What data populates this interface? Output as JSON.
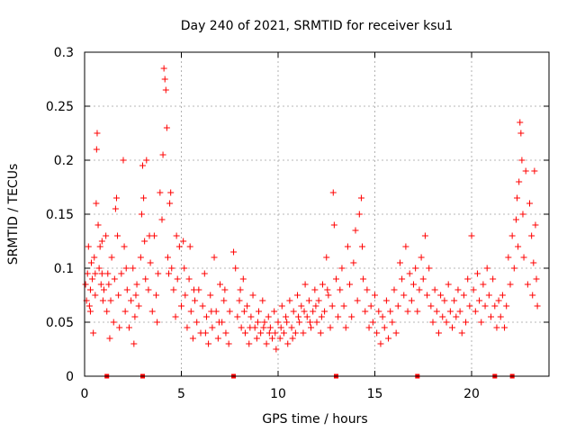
{
  "chart_data": {
    "type": "scatter",
    "title": "Day 240 of 2021, SRMTID for receiver ksu1",
    "xlabel": "GPS time / hours",
    "ylabel": "SRMTID / TECUs",
    "xlim": [
      0,
      24
    ],
    "ylim": [
      0,
      0.3
    ],
    "xticks": [
      0,
      5,
      10,
      15,
      20
    ],
    "xtick_labels": [
      "0",
      "5",
      "10",
      "15",
      "20"
    ],
    "yticks": [
      0,
      0.05,
      0.1,
      0.15,
      0.2,
      0.25,
      0.3
    ],
    "ytick_labels": [
      "0",
      "0.05",
      "0.1",
      "0.15",
      "0.2",
      "0.25",
      "0.3"
    ],
    "grid": true,
    "marker": "+",
    "series": [
      {
        "name": "SRMTID",
        "color": "#ff0000",
        "points": [
          [
            0.05,
            0.085
          ],
          [
            0.1,
            0.07
          ],
          [
            0.15,
            0.095
          ],
          [
            0.2,
            0.12
          ],
          [
            0.25,
            0.065
          ],
          [
            0.3,
            0.08
          ],
          [
            0.35,
            0.105
          ],
          [
            0.4,
            0.09
          ],
          [
            0.45,
            0.04
          ],
          [
            0.5,
            0.11
          ],
          [
            0.55,
            0.075
          ],
          [
            0.6,
            0.16
          ],
          [
            0.62,
            0.21
          ],
          [
            0.65,
            0.225
          ],
          [
            0.7,
            0.14
          ],
          [
            0.75,
            0.1
          ],
          [
            0.8,
            0.12
          ],
          [
            0.85,
            0.085
          ],
          [
            0.9,
            0.095
          ],
          [
            0.95,
            0.07
          ],
          [
            1.0,
            0.08
          ],
          [
            1.1,
            0.13
          ],
          [
            1.15,
            0.06
          ],
          [
            1.2,
            0.095
          ],
          [
            1.3,
            0.035
          ],
          [
            1.35,
            0.07
          ],
          [
            1.4,
            0.11
          ],
          [
            1.5,
            0.05
          ],
          [
            1.55,
            0.09
          ],
          [
            1.6,
            0.155
          ],
          [
            1.65,
            0.165
          ],
          [
            1.7,
            0.13
          ],
          [
            1.75,
            0.075
          ],
          [
            1.8,
            0.045
          ],
          [
            1.9,
            0.095
          ],
          [
            2.0,
            0.2
          ],
          [
            2.05,
            0.12
          ],
          [
            2.1,
            0.06
          ],
          [
            2.2,
            0.08
          ],
          [
            2.3,
            0.045
          ],
          [
            2.4,
            0.07
          ],
          [
            2.5,
            0.1
          ],
          [
            2.55,
            0.03
          ],
          [
            2.6,
            0.055
          ],
          [
            2.7,
            0.085
          ],
          [
            2.8,
            0.065
          ],
          [
            2.9,
            0.11
          ],
          [
            2.95,
            0.15
          ],
          [
            3.0,
            0.195
          ],
          [
            3.05,
            0.165
          ],
          [
            3.1,
            0.125
          ],
          [
            3.15,
            0.09
          ],
          [
            3.2,
            0.2
          ],
          [
            3.3,
            0.08
          ],
          [
            3.4,
            0.105
          ],
          [
            3.5,
            0.06
          ],
          [
            3.6,
            0.13
          ],
          [
            3.7,
            0.075
          ],
          [
            3.8,
            0.095
          ],
          [
            3.9,
            0.17
          ],
          [
            4.0,
            0.145
          ],
          [
            4.05,
            0.205
          ],
          [
            4.1,
            0.285
          ],
          [
            4.15,
            0.275
          ],
          [
            4.2,
            0.265
          ],
          [
            4.25,
            0.23
          ],
          [
            4.3,
            0.11
          ],
          [
            4.4,
            0.16
          ],
          [
            4.45,
            0.17
          ],
          [
            4.5,
            0.1
          ],
          [
            4.6,
            0.08
          ],
          [
            4.7,
            0.055
          ],
          [
            4.8,
            0.09
          ],
          [
            4.9,
            0.12
          ],
          [
            5.0,
            0.065
          ],
          [
            5.1,
            0.125
          ],
          [
            5.2,
            0.075
          ],
          [
            5.3,
            0.045
          ],
          [
            5.4,
            0.09
          ],
          [
            5.5,
            0.06
          ],
          [
            5.6,
            0.035
          ],
          [
            5.7,
            0.07
          ],
          [
            5.8,
            0.05
          ],
          [
            5.9,
            0.08
          ],
          [
            6.0,
            0.04
          ],
          [
            6.1,
            0.065
          ],
          [
            6.2,
            0.095
          ],
          [
            6.3,
            0.055
          ],
          [
            6.4,
            0.03
          ],
          [
            6.5,
            0.075
          ],
          [
            6.6,
            0.045
          ],
          [
            6.7,
            0.11
          ],
          [
            6.8,
            0.06
          ],
          [
            6.9,
            0.035
          ],
          [
            7.0,
            0.085
          ],
          [
            7.1,
            0.05
          ],
          [
            7.2,
            0.07
          ],
          [
            7.3,
            0.04
          ],
          [
            7.5,
            0.06
          ],
          [
            7.7,
            0.115
          ],
          [
            7.8,
            0.1
          ],
          [
            7.9,
            0.055
          ],
          [
            8.0,
            0.07
          ],
          [
            8.1,
            0.045
          ],
          [
            8.2,
            0.09
          ],
          [
            8.3,
            0.04
          ],
          [
            8.4,
            0.065
          ],
          [
            8.5,
            0.03
          ],
          [
            8.6,
            0.055
          ],
          [
            8.7,
            0.075
          ],
          [
            8.8,
            0.045
          ],
          [
            8.9,
            0.035
          ],
          [
            9.0,
            0.06
          ],
          [
            9.1,
            0.04
          ],
          [
            9.2,
            0.07
          ],
          [
            9.3,
            0.05
          ],
          [
            9.4,
            0.03
          ],
          [
            9.5,
            0.055
          ],
          [
            9.6,
            0.045
          ],
          [
            9.7,
            0.035
          ],
          [
            9.8,
            0.06
          ],
          [
            9.9,
            0.025
          ],
          [
            10.0,
            0.05
          ],
          [
            10.1,
            0.035
          ],
          [
            10.2,
            0.065
          ],
          [
            10.3,
            0.04
          ],
          [
            10.4,
            0.055
          ],
          [
            10.5,
            0.03
          ],
          [
            10.6,
            0.07
          ],
          [
            10.7,
            0.045
          ],
          [
            10.8,
            0.06
          ],
          [
            10.9,
            0.04
          ],
          [
            11.0,
            0.075
          ],
          [
            11.1,
            0.05
          ],
          [
            11.2,
            0.065
          ],
          [
            11.3,
            0.04
          ],
          [
            11.4,
            0.085
          ],
          [
            11.5,
            0.055
          ],
          [
            11.6,
            0.07
          ],
          [
            11.7,
            0.045
          ],
          [
            11.8,
            0.06
          ],
          [
            11.9,
            0.08
          ],
          [
            12.0,
            0.05
          ],
          [
            12.1,
            0.07
          ],
          [
            12.2,
            0.04
          ],
          [
            12.3,
            0.085
          ],
          [
            12.4,
            0.06
          ],
          [
            12.5,
            0.11
          ],
          [
            12.6,
            0.075
          ],
          [
            12.7,
            0.045
          ],
          [
            12.8,
            0.065
          ],
          [
            12.85,
            0.17
          ],
          [
            12.9,
            0.14
          ],
          [
            13.0,
            0.09
          ],
          [
            13.1,
            0.055
          ],
          [
            13.2,
            0.08
          ],
          [
            13.3,
            0.1
          ],
          [
            13.4,
            0.065
          ],
          [
            13.5,
            0.045
          ],
          [
            13.6,
            0.12
          ],
          [
            13.7,
            0.085
          ],
          [
            13.8,
            0.055
          ],
          [
            13.9,
            0.105
          ],
          [
            14.0,
            0.135
          ],
          [
            14.1,
            0.07
          ],
          [
            14.2,
            0.15
          ],
          [
            14.3,
            0.165
          ],
          [
            14.35,
            0.12
          ],
          [
            14.4,
            0.09
          ],
          [
            14.5,
            0.06
          ],
          [
            14.6,
            0.08
          ],
          [
            14.7,
            0.045
          ],
          [
            14.8,
            0.065
          ],
          [
            14.9,
            0.05
          ],
          [
            15.0,
            0.075
          ],
          [
            15.1,
            0.04
          ],
          [
            15.2,
            0.06
          ],
          [
            15.3,
            0.03
          ],
          [
            15.4,
            0.055
          ],
          [
            15.5,
            0.045
          ],
          [
            15.6,
            0.07
          ],
          [
            15.7,
            0.035
          ],
          [
            15.8,
            0.06
          ],
          [
            15.9,
            0.05
          ],
          [
            16.0,
            0.08
          ],
          [
            16.1,
            0.04
          ],
          [
            16.2,
            0.065
          ],
          [
            16.3,
            0.105
          ],
          [
            16.4,
            0.09
          ],
          [
            16.5,
            0.075
          ],
          [
            16.6,
            0.12
          ],
          [
            16.7,
            0.06
          ],
          [
            16.8,
            0.095
          ],
          [
            16.9,
            0.07
          ],
          [
            17.0,
            0.085
          ],
          [
            17.1,
            0.1
          ],
          [
            17.2,
            0.06
          ],
          [
            17.3,
            0.08
          ],
          [
            17.4,
            0.11
          ],
          [
            17.5,
            0.09
          ],
          [
            17.6,
            0.13
          ],
          [
            17.7,
            0.075
          ],
          [
            17.8,
            0.1
          ],
          [
            17.9,
            0.065
          ],
          [
            18.0,
            0.05
          ],
          [
            18.1,
            0.08
          ],
          [
            18.2,
            0.06
          ],
          [
            18.3,
            0.04
          ],
          [
            18.4,
            0.075
          ],
          [
            18.5,
            0.055
          ],
          [
            18.6,
            0.07
          ],
          [
            18.7,
            0.05
          ],
          [
            18.8,
            0.085
          ],
          [
            18.9,
            0.06
          ],
          [
            19.0,
            0.045
          ],
          [
            19.1,
            0.07
          ],
          [
            19.2,
            0.055
          ],
          [
            19.3,
            0.08
          ],
          [
            19.4,
            0.06
          ],
          [
            19.5,
            0.04
          ],
          [
            19.6,
            0.075
          ],
          [
            19.7,
            0.05
          ],
          [
            19.8,
            0.09
          ],
          [
            19.9,
            0.065
          ],
          [
            20.0,
            0.13
          ],
          [
            20.1,
            0.08
          ],
          [
            20.2,
            0.06
          ],
          [
            20.3,
            0.095
          ],
          [
            20.4,
            0.07
          ],
          [
            20.5,
            0.05
          ],
          [
            20.6,
            0.085
          ],
          [
            20.7,
            0.065
          ],
          [
            20.8,
            0.1
          ],
          [
            20.9,
            0.075
          ],
          [
            21.0,
            0.055
          ],
          [
            21.1,
            0.09
          ],
          [
            21.2,
            0.065
          ],
          [
            21.3,
            0.045
          ],
          [
            21.4,
            0.07
          ],
          [
            21.5,
            0.055
          ],
          [
            21.6,
            0.075
          ],
          [
            21.7,
            0.045
          ],
          [
            21.8,
            0.065
          ],
          [
            21.9,
            0.11
          ],
          [
            22.0,
            0.085
          ],
          [
            22.1,
            0.13
          ],
          [
            22.2,
            0.1
          ],
          [
            22.3,
            0.145
          ],
          [
            22.35,
            0.165
          ],
          [
            22.4,
            0.12
          ],
          [
            22.45,
            0.18
          ],
          [
            22.5,
            0.235
          ],
          [
            22.55,
            0.225
          ],
          [
            22.6,
            0.2
          ],
          [
            22.65,
            0.15
          ],
          [
            22.7,
            0.11
          ],
          [
            22.8,
            0.19
          ],
          [
            22.9,
            0.085
          ],
          [
            23.0,
            0.16
          ],
          [
            23.1,
            0.13
          ],
          [
            23.15,
            0.075
          ],
          [
            23.2,
            0.105
          ],
          [
            23.25,
            0.19
          ],
          [
            23.3,
            0.14
          ],
          [
            23.35,
            0.09
          ],
          [
            23.4,
            0.065
          ],
          [
            0.3,
            0.06
          ],
          [
            0.55,
            0.095
          ],
          [
            0.9,
            0.125
          ],
          [
            1.25,
            0.085
          ],
          [
            2.15,
            0.1
          ],
          [
            2.65,
            0.075
          ],
          [
            3.35,
            0.13
          ],
          [
            3.75,
            0.05
          ],
          [
            4.35,
            0.095
          ],
          [
            4.75,
            0.13
          ],
          [
            5.15,
            0.1
          ],
          [
            5.45,
            0.12
          ],
          [
            5.65,
            0.08
          ],
          [
            6.25,
            0.04
          ],
          [
            6.55,
            0.06
          ],
          [
            6.95,
            0.05
          ],
          [
            7.25,
            0.08
          ],
          [
            7.45,
            0.03
          ],
          [
            8.05,
            0.08
          ],
          [
            8.25,
            0.06
          ],
          [
            8.55,
            0.045
          ],
          [
            8.95,
            0.05
          ],
          [
            9.25,
            0.045
          ],
          [
            9.55,
            0.04
          ],
          [
            9.85,
            0.04
          ],
          [
            10.15,
            0.045
          ],
          [
            10.45,
            0.05
          ],
          [
            10.75,
            0.035
          ],
          [
            11.05,
            0.055
          ],
          [
            11.35,
            0.06
          ],
          [
            11.65,
            0.05
          ],
          [
            11.95,
            0.065
          ],
          [
            12.25,
            0.055
          ],
          [
            12.55,
            0.08
          ]
        ]
      }
    ],
    "bottom_markers_x": [
      1.15,
      3.0,
      7.7,
      13.0,
      17.2,
      21.2,
      22.1
    ]
  }
}
